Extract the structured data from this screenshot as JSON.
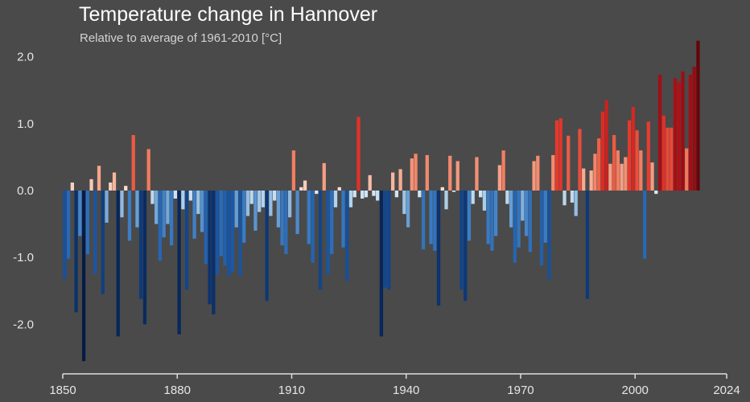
{
  "chart_data": {
    "type": "bar",
    "title": "Temperature change in Hannover",
    "subtitle": "Relative to average of 1961-2010  [°C]",
    "xlabel": "",
    "ylabel": "",
    "x_start": 1851,
    "x_end": 2024,
    "xlim": [
      1850,
      2024
    ],
    "ylim": [
      -2.6,
      2.4
    ],
    "x_ticks": [
      {
        "value": 1850,
        "label": "1850"
      },
      {
        "value": 1880,
        "label": "1880"
      },
      {
        "value": 1910,
        "label": "1910"
      },
      {
        "value": 1940,
        "label": "1940"
      },
      {
        "value": 1970,
        "label": "1970"
      },
      {
        "value": 2000,
        "label": "2000"
      },
      {
        "value": 2024,
        "label": "2024"
      }
    ],
    "y_ticks": [
      {
        "value": 2.0,
        "label": "2.0"
      },
      {
        "value": 1.0,
        "label": "1.0"
      },
      {
        "value": 0.0,
        "label": "0.0"
      },
      {
        "value": -1.0,
        "label": "-1.0"
      },
      {
        "value": -2.0,
        "label": "-2.0"
      }
    ],
    "grid": false,
    "colors": {
      "background": "#4a4a4a",
      "axis": "#dcdcdc",
      "text": "#e6e6e6"
    },
    "values": [
      -1.32,
      -1.02,
      0.12,
      -1.82,
      -0.68,
      -2.55,
      -0.95,
      0.17,
      -1.25,
      0.37,
      -1.55,
      -0.48,
      0.12,
      0.27,
      -2.18,
      -0.4,
      0.07,
      -0.75,
      0.83,
      -0.55,
      -1.62,
      -2.0,
      0.62,
      -0.2,
      -0.5,
      -1.05,
      -0.7,
      -0.5,
      -0.82,
      -0.12,
      -2.15,
      -0.28,
      -1.48,
      -0.15,
      -0.72,
      -0.35,
      -0.62,
      -1.1,
      -1.7,
      -1.85,
      -1.25,
      -0.98,
      -1.12,
      -1.28,
      -1.22,
      -0.55,
      -1.28,
      -0.78,
      -0.38,
      -0.2,
      -0.6,
      -0.32,
      -0.25,
      -1.65,
      -0.38,
      -0.15,
      -0.55,
      -0.82,
      -0.95,
      -0.4,
      0.6,
      -0.65,
      0.05,
      0.15,
      -0.8,
      -1.08,
      -0.05,
      -1.48,
      0.41,
      -1.25,
      -0.95,
      -0.25,
      0.05,
      -0.85,
      -1.35,
      -0.25,
      -0.1,
      1.1,
      -0.12,
      -0.1,
      0.23,
      -0.08,
      -0.15,
      -2.18,
      -1.45,
      -1.48,
      0.27,
      -0.1,
      0.32,
      -0.35,
      -0.55,
      0.48,
      0.55,
      -0.1,
      -0.88,
      0.53,
      -0.8,
      -0.9,
      -1.72,
      0.05,
      -0.28,
      0.52,
      -0.02,
      0.44,
      -1.48,
      -1.65,
      -0.75,
      -0.2,
      0.5,
      -0.1,
      -0.3,
      -0.8,
      -0.9,
      -0.68,
      0.38,
      0.6,
      -0.2,
      -0.55,
      -1.08,
      -0.85,
      -0.45,
      -0.68,
      -0.92,
      0.44,
      0.52,
      -1.12,
      -0.78,
      -1.33,
      0.53,
      1.05,
      1.08,
      -0.22,
      0.82,
      -0.18,
      -0.38,
      0.92,
      0.33,
      -1.62,
      0.3,
      0.55,
      0.78,
      1.18,
      1.35,
      0.4,
      0.83,
      0.6,
      0.4,
      0.5,
      1.05,
      1.25,
      0.9,
      0.6,
      -1.02,
      1.03,
      0.42,
      -0.05,
      1.73,
      1.12,
      0.94,
      0.94,
      1.68,
      1.62,
      1.78,
      0.63,
      1.73,
      1.85,
      2.24
    ]
  }
}
